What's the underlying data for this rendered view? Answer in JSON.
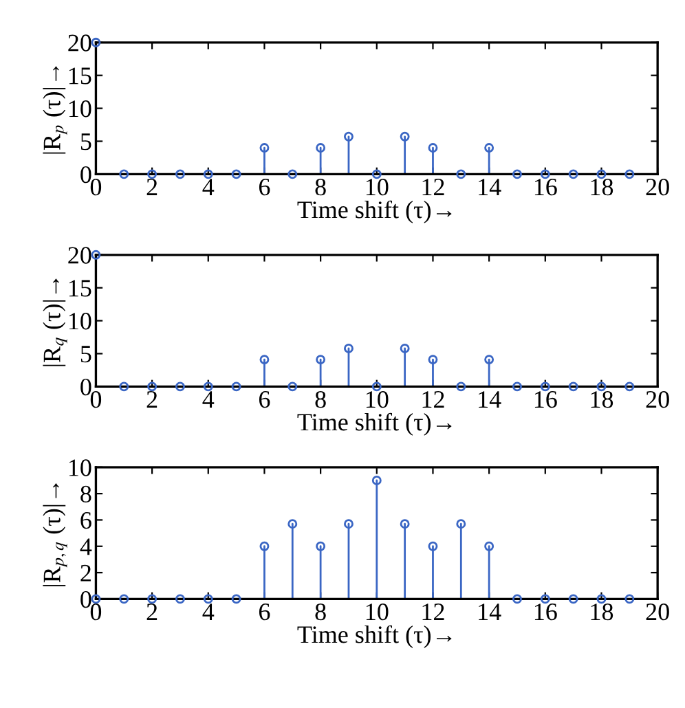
{
  "chart_data": [
    {
      "type": "lollipop",
      "x": [
        0,
        1,
        2,
        3,
        4,
        5,
        6,
        7,
        8,
        9,
        10,
        11,
        12,
        13,
        14,
        15,
        16,
        17,
        18,
        19
      ],
      "marker": "circle",
      "grid": false,
      "legend": false,
      "series": [
        {
          "color": "#3a66c4",
          "values": [
            20,
            0,
            0,
            0,
            0,
            0,
            4,
            0,
            4,
            5.7,
            0,
            5.7,
            4,
            0,
            4,
            0,
            0,
            0,
            0,
            0
          ]
        }
      ],
      "xlim": [
        0,
        20
      ],
      "xticks": [
        0,
        2,
        4,
        6,
        8,
        10,
        12,
        14,
        16,
        18,
        20
      ],
      "ylim": [
        0,
        20
      ],
      "yticks": [
        0,
        5,
        10,
        15,
        20
      ],
      "xlabel": "Time shift (τ)→",
      "ylabel": "|R$_{p}$ (τ)|→"
    },
    {
      "type": "lollipop",
      "x": [
        0,
        1,
        2,
        3,
        4,
        5,
        6,
        7,
        8,
        9,
        10,
        11,
        12,
        13,
        14,
        15,
        16,
        17,
        18,
        19
      ],
      "marker": "circle",
      "grid": false,
      "legend": false,
      "series": [
        {
          "color": "#3a66c4",
          "values": [
            20,
            0,
            0,
            0,
            0,
            0,
            4.1,
            0,
            4.1,
            5.8,
            0,
            5.8,
            4.1,
            0,
            4.1,
            0,
            0,
            0,
            0,
            0
          ]
        }
      ],
      "xlim": [
        0,
        20
      ],
      "xticks": [
        0,
        2,
        4,
        6,
        8,
        10,
        12,
        14,
        16,
        18,
        20
      ],
      "ylim": [
        0,
        20
      ],
      "yticks": [
        0,
        5,
        10,
        15,
        20
      ],
      "xlabel": "Time shift (τ)→",
      "ylabel": "|R$_{q}$ (τ)|→"
    },
    {
      "type": "lollipop",
      "x": [
        0,
        1,
        2,
        3,
        4,
        5,
        6,
        7,
        8,
        9,
        10,
        11,
        12,
        13,
        14,
        15,
        16,
        17,
        18,
        19
      ],
      "marker": "circle",
      "grid": false,
      "legend": false,
      "series": [
        {
          "color": "#3a66c4",
          "values": [
            0,
            0,
            0,
            0,
            0,
            0,
            4,
            5.7,
            4,
            5.7,
            9,
            5.7,
            4,
            5.7,
            4,
            0,
            0,
            0,
            0,
            0
          ]
        }
      ],
      "xlim": [
        0,
        20
      ],
      "xticks": [
        0,
        2,
        4,
        6,
        8,
        10,
        12,
        14,
        16,
        18,
        20
      ],
      "ylim": [
        0,
        10
      ],
      "yticks": [
        0,
        2,
        4,
        6,
        8,
        10
      ],
      "xlabel": "Time shift (τ)→",
      "ylabel": "|R$_{p,q}$ (τ)|→"
    }
  ]
}
